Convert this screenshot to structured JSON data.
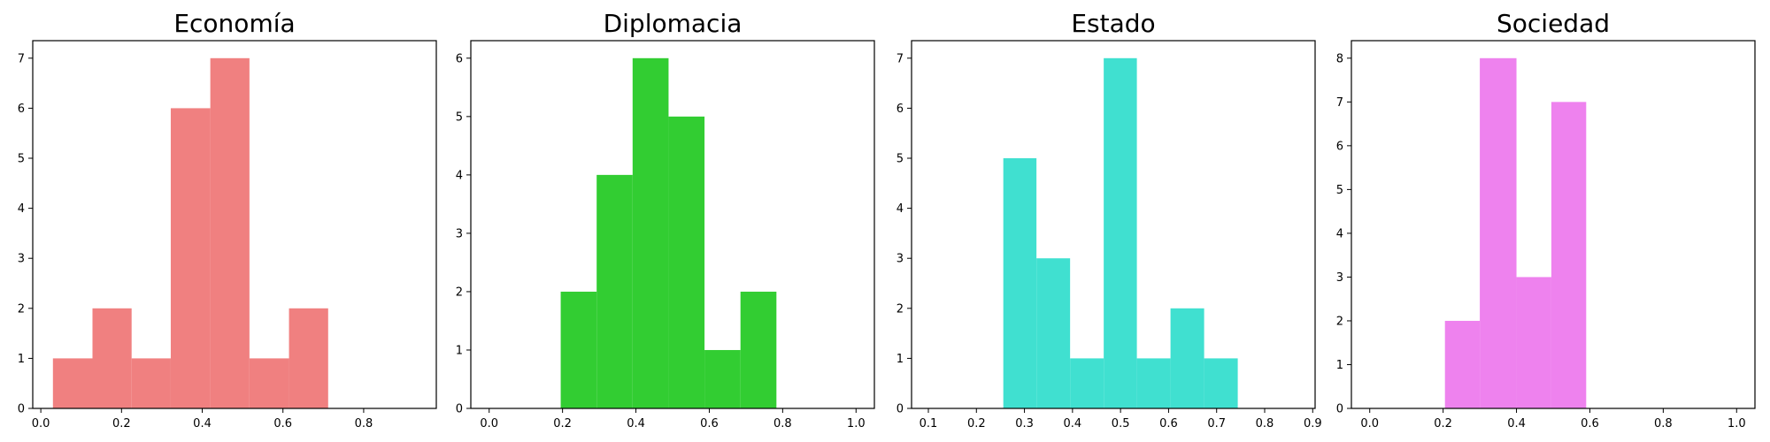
{
  "chart_data": [
    {
      "type": "bar",
      "title": "Economía",
      "color": "#f08080",
      "bins": [
        [
          0.03,
          0.128,
          1
        ],
        [
          0.128,
          0.225,
          2
        ],
        [
          0.225,
          0.322,
          1
        ],
        [
          0.322,
          0.42,
          6
        ],
        [
          0.42,
          0.517,
          7
        ],
        [
          0.517,
          0.615,
          1
        ],
        [
          0.615,
          0.712,
          2
        ]
      ],
      "xlim": [
        -0.02,
        0.98
      ],
      "ylim": [
        0,
        7.35
      ],
      "xticks": [
        0.0,
        0.2,
        0.4,
        0.6,
        0.8
      ],
      "xtick_labels": [
        "0.0",
        "0.2",
        "0.4",
        "0.6",
        "0.8"
      ],
      "yticks": [
        0,
        1,
        2,
        3,
        4,
        5,
        6,
        7
      ],
      "ytick_labels": [
        "0",
        "1",
        "2",
        "3",
        "4",
        "5",
        "6",
        "7"
      ],
      "grid": false
    },
    {
      "type": "bar",
      "title": "Diplomacia",
      "color": "#32cd32",
      "bins": [
        [
          0.195,
          0.293,
          2
        ],
        [
          0.293,
          0.391,
          4
        ],
        [
          0.391,
          0.489,
          6
        ],
        [
          0.489,
          0.587,
          5
        ],
        [
          0.587,
          0.685,
          1
        ],
        [
          0.685,
          0.783,
          2
        ]
      ],
      "xlim": [
        -0.05,
        1.05
      ],
      "ylim": [
        0,
        6.3
      ],
      "xticks": [
        0.0,
        0.2,
        0.4,
        0.6,
        0.8,
        1.0
      ],
      "xtick_labels": [
        "0.0",
        "0.2",
        "0.4",
        "0.6",
        "0.8",
        "1.0"
      ],
      "yticks": [
        0,
        1,
        2,
        3,
        4,
        5,
        6
      ],
      "ytick_labels": [
        "0",
        "1",
        "2",
        "3",
        "4",
        "5",
        "6"
      ],
      "grid": false
    },
    {
      "type": "bar",
      "title": "Estado",
      "color": "#40e0d0",
      "bins": [
        [
          0.256,
          0.325,
          5
        ],
        [
          0.325,
          0.395,
          3
        ],
        [
          0.395,
          0.465,
          1
        ],
        [
          0.465,
          0.534,
          7
        ],
        [
          0.534,
          0.604,
          1
        ],
        [
          0.604,
          0.674,
          2
        ],
        [
          0.674,
          0.744,
          1
        ]
      ],
      "xlim": [
        0.065,
        0.905
      ],
      "ylim": [
        0,
        7.35
      ],
      "xticks": [
        0.1,
        0.2,
        0.3,
        0.4,
        0.5,
        0.6,
        0.7,
        0.8,
        0.9
      ],
      "xtick_labels": [
        "0.1",
        "0.2",
        "0.3",
        "0.4",
        "0.5",
        "0.6",
        "0.7",
        "0.8",
        "0.9"
      ],
      "yticks": [
        0,
        1,
        2,
        3,
        4,
        5,
        6,
        7
      ],
      "ytick_labels": [
        "0",
        "1",
        "2",
        "3",
        "4",
        "5",
        "6",
        "7"
      ],
      "grid": false
    },
    {
      "type": "bar",
      "title": "Sociedad",
      "color": "#ee82ee",
      "bins": [
        [
          0.205,
          0.3,
          2
        ],
        [
          0.3,
          0.4,
          8
        ],
        [
          0.4,
          0.495,
          3
        ],
        [
          0.495,
          0.59,
          7
        ]
      ],
      "xlim": [
        -0.05,
        1.05
      ],
      "ylim": [
        0,
        8.4
      ],
      "xticks": [
        0.0,
        0.2,
        0.4,
        0.6,
        0.8,
        1.0
      ],
      "xtick_labels": [
        "0.0",
        "0.2",
        "0.4",
        "0.6",
        "0.8",
        "1.0"
      ],
      "yticks": [
        0,
        1,
        2,
        3,
        4,
        5,
        6,
        7,
        8
      ],
      "ytick_labels": [
        "0",
        "1",
        "2",
        "3",
        "4",
        "5",
        "6",
        "7",
        "8"
      ],
      "grid": false
    }
  ]
}
